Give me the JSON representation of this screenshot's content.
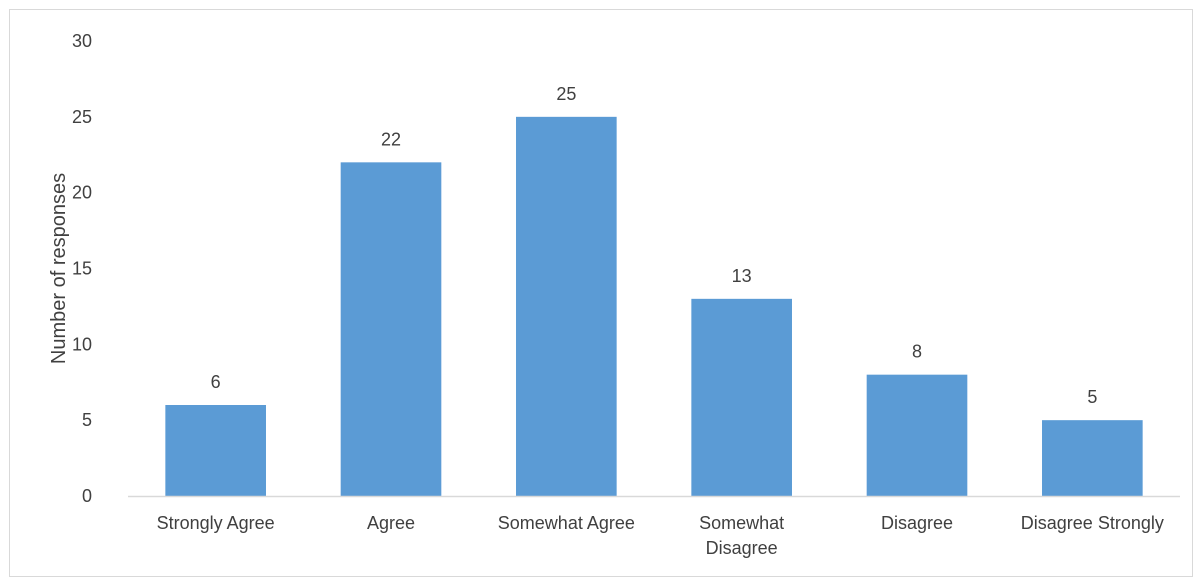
{
  "chart_data": {
    "type": "bar",
    "categories": [
      "Strongly Agree",
      "Agree",
      "Somewhat Agree",
      "Somewhat Disagree",
      "Disagree",
      "Disagree Strongly"
    ],
    "category_lines": [
      [
        "Strongly Agree"
      ],
      [
        "Agree"
      ],
      [
        "Somewhat Agree"
      ],
      [
        "Somewhat",
        "Disagree"
      ],
      [
        "Disagree"
      ],
      [
        "Disagree Strongly"
      ]
    ],
    "values": [
      6,
      22,
      25,
      13,
      8,
      5
    ],
    "data_labels": [
      "6",
      "22",
      "25",
      "13",
      "8",
      "5"
    ],
    "title": "",
    "xlabel": "",
    "ylabel": "Number of responses",
    "ylim": [
      0,
      30
    ],
    "yticks": [
      0,
      5,
      10,
      15,
      20,
      25,
      30
    ],
    "ytick_labels": [
      "0",
      "5",
      "10",
      "15",
      "20",
      "25",
      "30"
    ],
    "grid": false,
    "legend": "none",
    "colors": {
      "bar": "#5b9bd5",
      "axis": "#d9d9d9",
      "text": "#404040"
    }
  }
}
